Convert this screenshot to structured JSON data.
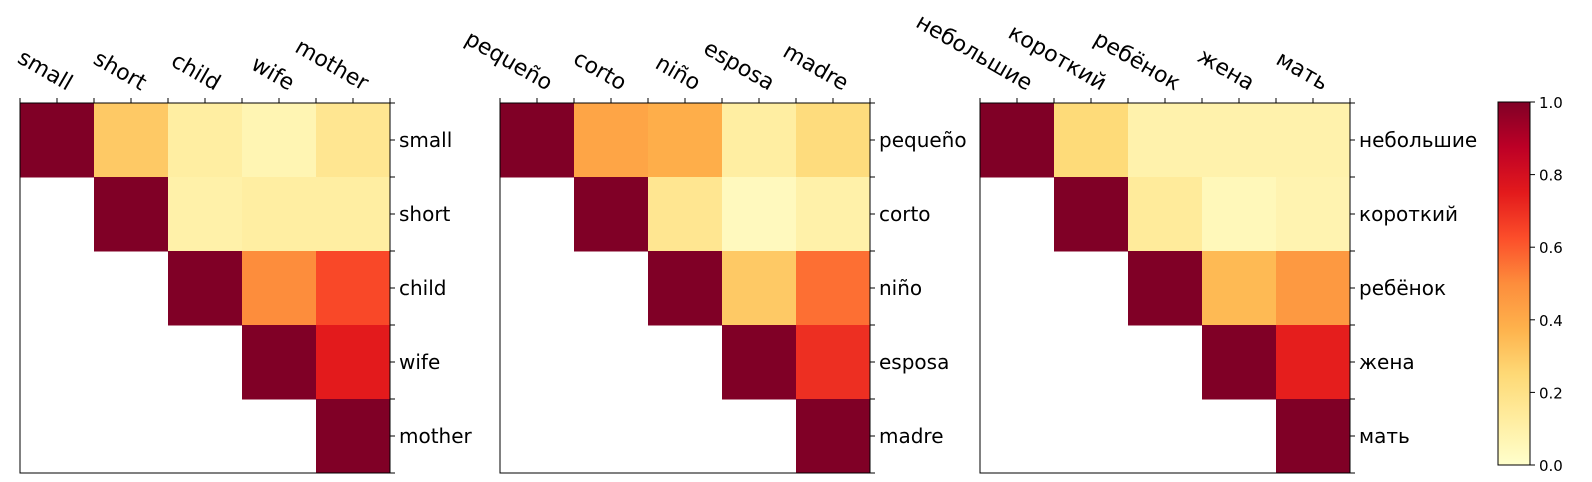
{
  "chart_data": [
    {
      "type": "heatmap",
      "x_tick_labels": [
        "small",
        "short",
        "child",
        "wife",
        "mother"
      ],
      "y_tick_labels": [
        "small",
        "short",
        "child",
        "wife",
        "mother"
      ],
      "values": [
        [
          1.0,
          0.3,
          0.12,
          0.07,
          0.17
        ],
        [
          null,
          1.0,
          0.1,
          0.12,
          0.12
        ],
        [
          null,
          null,
          1.0,
          0.5,
          0.64
        ],
        [
          null,
          null,
          null,
          1.0,
          0.75
        ],
        [
          null,
          null,
          null,
          null,
          1.0
        ]
      ]
    },
    {
      "type": "heatmap",
      "x_tick_labels": [
        "pequeño",
        "corto",
        "niño",
        "esposa",
        "madre"
      ],
      "y_tick_labels": [
        "pequeño",
        "corto",
        "niño",
        "esposa",
        "madre"
      ],
      "values": [
        [
          1.0,
          0.42,
          0.39,
          0.12,
          0.23
        ],
        [
          null,
          1.0,
          0.17,
          0.04,
          0.1
        ],
        [
          null,
          null,
          1.0,
          0.3,
          0.56
        ],
        [
          null,
          null,
          null,
          1.0,
          0.7
        ],
        [
          null,
          null,
          null,
          null,
          1.0
        ]
      ]
    },
    {
      "type": "heatmap",
      "x_tick_labels": [
        "небольшие",
        "короткий",
        "ребёнок",
        "жена",
        "мать"
      ],
      "y_tick_labels": [
        "небольшие",
        "короткий",
        "ребёнок",
        "жена",
        "мать"
      ],
      "values": [
        [
          1.0,
          0.24,
          0.09,
          0.09,
          0.09
        ],
        [
          null,
          1.0,
          0.14,
          0.05,
          0.08
        ],
        [
          null,
          null,
          1.0,
          0.35,
          0.46
        ],
        [
          null,
          null,
          null,
          1.0,
          0.74
        ],
        [
          null,
          null,
          null,
          null,
          1.0
        ]
      ]
    }
  ],
  "colorbar": {
    "min": 0.0,
    "max": 1.0,
    "ticks": [
      "0.0",
      "0.2",
      "0.4",
      "0.6",
      "0.8",
      "1.0"
    ],
    "colormap": "YlOrRd",
    "colors": [
      "#ffffcc",
      "#ffeda0",
      "#fed976",
      "#feb24c",
      "#fd8d3c",
      "#fc4e2a",
      "#e31a1c",
      "#bd0026",
      "#800026"
    ]
  }
}
